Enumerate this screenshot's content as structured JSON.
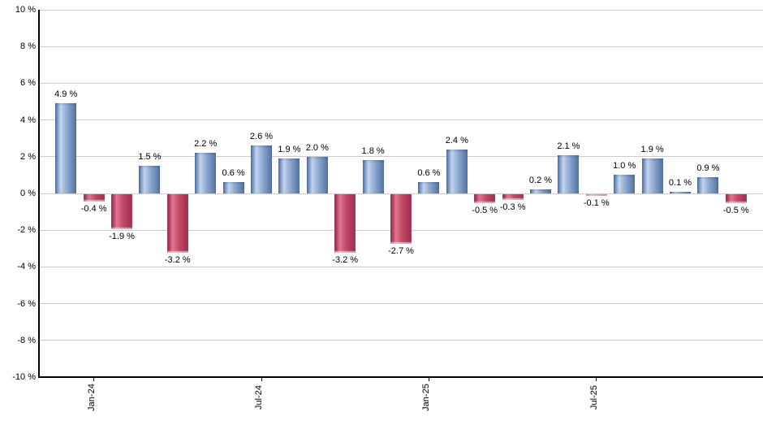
{
  "chart_data": {
    "type": "bar",
    "title": "",
    "xlabel": "",
    "ylabel": "",
    "ylim": [
      -10,
      10
    ],
    "grid": true,
    "legend": "none",
    "values": [
      4.9,
      -0.4,
      -1.9,
      1.5,
      -3.2,
      2.2,
      0.6,
      2.6,
      1.9,
      2.0,
      -3.2,
      1.8,
      -2.7,
      0.6,
      2.4,
      -0.5,
      -0.3,
      0.2,
      2.1,
      -0.1,
      1.0,
      1.9,
      0.1,
      0.9,
      -0.5
    ],
    "value_label_format": "{v} %",
    "y_ticks": [
      10,
      8,
      6,
      4,
      2,
      0,
      -2,
      -4,
      -6,
      -8,
      -10
    ],
    "y_tick_format": "{v} %",
    "x_ticks": [
      {
        "bar_index": 1,
        "label": "Jan-24"
      },
      {
        "bar_index": 7,
        "label": "Jul-24"
      },
      {
        "bar_index": 13,
        "label": "Jan-25"
      },
      {
        "bar_index": 19,
        "label": "Jul-25"
      }
    ],
    "colors": {
      "positive": {
        "edge_left": "#4a6da1",
        "highlight": "#c3d4ee",
        "mid": "#8ea9d2",
        "edge_right": "#53719f"
      },
      "negative": {
        "edge_left": "#8a2144",
        "highlight": "#e2768f",
        "mid": "#c24a68",
        "edge_right": "#9f2c4e"
      },
      "gridline": "#cccccc",
      "axis": "#000000",
      "label": "#000000"
    }
  }
}
